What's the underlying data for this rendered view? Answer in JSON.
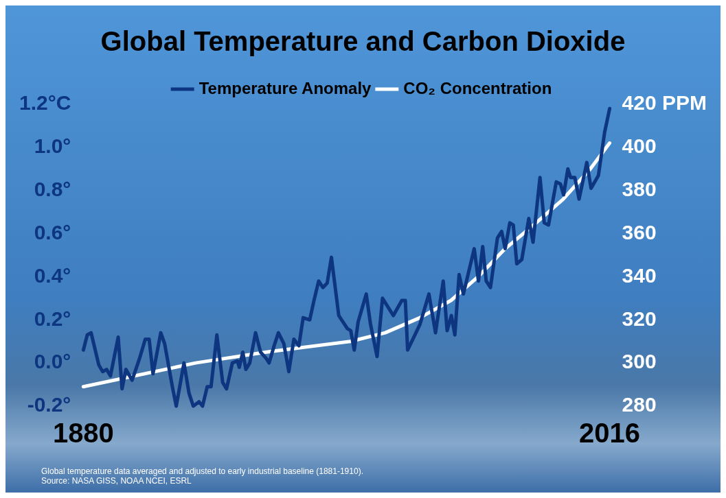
{
  "chart_data": {
    "type": "line",
    "title": "Global Temperature and Carbon Dioxide",
    "annotations": [
      "Global temperature data averaged and adjusted to early industrial baseline (1881-1910).",
      "Source: NASA GISS, NOAA NCEI, ESRL"
    ],
    "xlim": [
      1880,
      2016
    ],
    "xticks": [
      1880,
      2016
    ],
    "ylim": [
      -0.2,
      1.2
    ],
    "yticks": [
      {
        "value": -0.2,
        "label": "-0.2°"
      },
      {
        "value": 0,
        "label": "0.0°"
      },
      {
        "value": 0.2,
        "label": "0.2°"
      },
      {
        "value": 0.4,
        "label": "0.4°"
      },
      {
        "value": 0.6,
        "label": "0.6°"
      },
      {
        "value": 0.8,
        "label": "0.8°"
      },
      {
        "value": 1,
        "label": "1.0°"
      },
      {
        "value": 1.2,
        "label": "1.2°C"
      }
    ],
    "y2lim": [
      280,
      420
    ],
    "y2ticks": [
      280,
      300,
      320,
      340,
      360,
      380,
      400,
      {
        "value": 420,
        "label": "420 PPM"
      }
    ],
    "grid": false,
    "legend": "top",
    "marker": "none",
    "line_style": "solid",
    "series": [
      {
        "name": "Temperature Anomaly",
        "color": "#0d3580",
        "x": [
          1880,
          1881,
          1882,
          1884,
          1885,
          1886,
          1887,
          1889,
          1890,
          1891,
          1892.6,
          1894.5,
          1896,
          1897,
          1898,
          1900,
          1901,
          1903,
          1904,
          1906,
          1907.3,
          1908.4,
          1909.9,
          1910.8,
          1912,
          1913,
          1914.5,
          1916,
          1917,
          1918.5,
          1919.8,
          1920.3,
          1921.2,
          1922,
          1923,
          1924.5,
          1925.8,
          1927.3,
          1928,
          1929.3,
          1930.4,
          1931.8,
          1933.1,
          1934.4,
          1935.7,
          1936.8,
          1938.5,
          1939.6,
          1940.8,
          1941.9,
          1943,
          1944.1,
          1946,
          1948.2,
          1949.1,
          1950,
          1951,
          1953.1,
          1954.2,
          1955.9,
          1957.3,
          1960.1,
          1962.3,
          1963.2,
          1963.8,
          1967,
          1969.3,
          1971,
          1973,
          1974,
          1975.1,
          1976,
          1977.1,
          1978.2,
          1981,
          1982.1,
          1983.2,
          1984.1,
          1985.2,
          1987,
          1988.1,
          1989,
          1990.2,
          1991.1,
          1992,
          1993.3,
          1995.1,
          1996.2,
          1998,
          1999.1,
          2000.2,
          2002.2,
          2003.3,
          2004.1,
          2005.2,
          2005.9,
          2007,
          2008.1,
          2010.1,
          2011.2,
          2013.1,
          2014.7,
          2016
        ],
        "values": [
          0.06,
          0.13,
          0.14,
          -0.01,
          -0.04,
          -0.03,
          -0.06,
          0.12,
          -0.12,
          -0.03,
          -0.08,
          0.02,
          0.11,
          0.11,
          -0.05,
          0.14,
          0.09,
          -0.11,
          -0.2,
          0.0,
          -0.14,
          -0.2,
          -0.18,
          -0.2,
          -0.11,
          -0.11,
          0.13,
          -0.09,
          -0.12,
          0.0,
          0.01,
          -0.02,
          0.05,
          -0.03,
          0.0,
          0.14,
          0.05,
          0.02,
          0.0,
          0.08,
          0.14,
          0.09,
          -0.04,
          0.11,
          0.08,
          0.21,
          0.2,
          0.29,
          0.38,
          0.35,
          0.37,
          0.49,
          0.22,
          0.16,
          0.15,
          0.06,
          0.19,
          0.32,
          0.18,
          0.03,
          0.3,
          0.22,
          0.29,
          0.29,
          0.06,
          0.18,
          0.32,
          0.14,
          0.38,
          0.15,
          0.22,
          0.13,
          0.41,
          0.32,
          0.53,
          0.38,
          0.54,
          0.38,
          0.35,
          0.58,
          0.61,
          0.53,
          0.65,
          0.64,
          0.46,
          0.48,
          0.67,
          0.56,
          0.86,
          0.65,
          0.64,
          0.84,
          0.83,
          0.78,
          0.9,
          0.86,
          0.86,
          0.76,
          0.93,
          0.81,
          0.87,
          1.07,
          1.18
        ]
      },
      {
        "name": "CO₂ Concentration",
        "color": "#ffffff",
        "axis": "y2",
        "x": [
          1880,
          1909,
          1927,
          1949,
          1958,
          1967,
          1975,
          1982,
          1989,
          1997,
          2004,
          2011,
          2016
        ],
        "values": [
          289,
          300,
          305,
          310,
          314,
          321,
          329,
          340,
          353,
          365,
          376,
          390,
          402
        ]
      }
    ]
  }
}
